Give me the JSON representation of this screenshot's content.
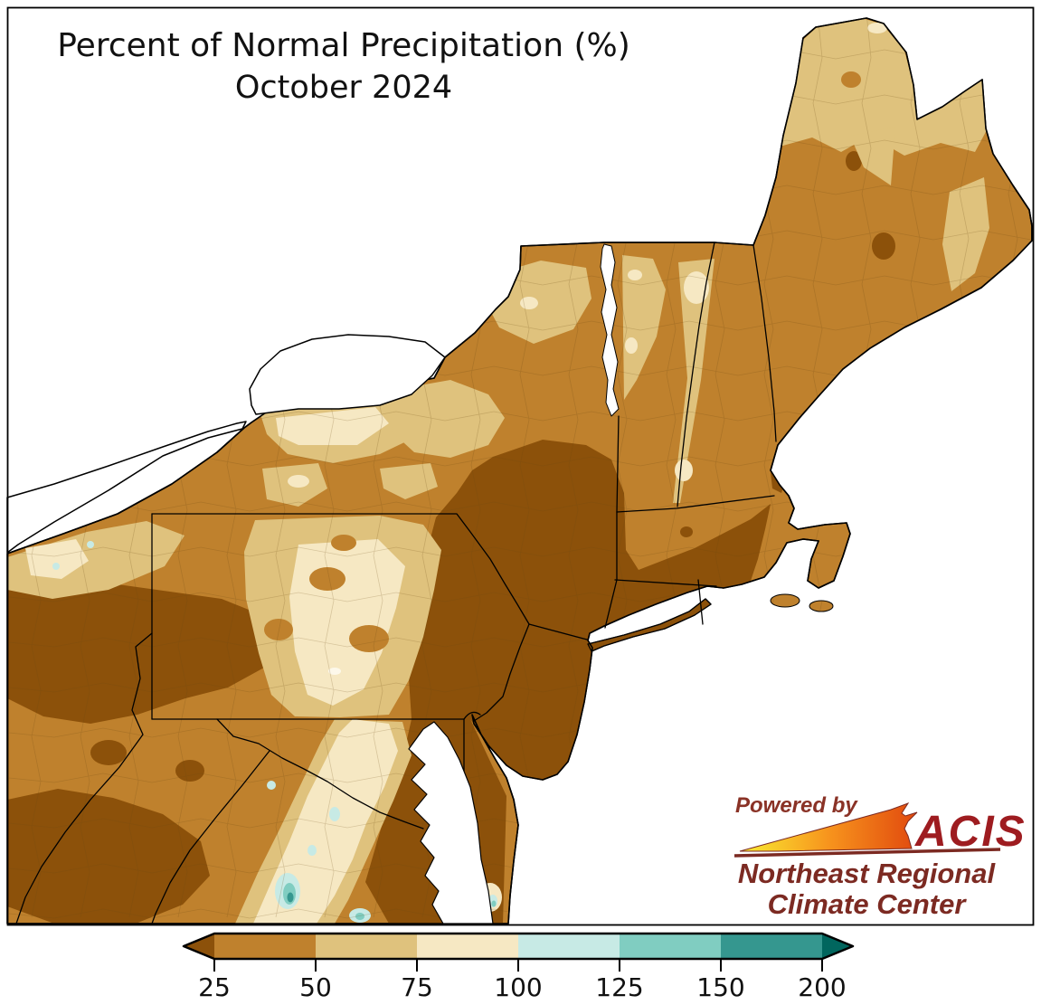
{
  "title": {
    "line1": "Percent of Normal Precipitation (%)",
    "line2": "October 2024"
  },
  "colorbar": {
    "ticks": [
      "25",
      "50",
      "75",
      "100",
      "125",
      "150",
      "200"
    ],
    "segments": [
      {
        "label": "below 25",
        "color": "#8c510a"
      },
      {
        "label": "25-50",
        "color": "#bf812d"
      },
      {
        "label": "50-75",
        "color": "#dfc27d"
      },
      {
        "label": "75-100",
        "color": "#f6e8c3"
      },
      {
        "label": "100-125",
        "color": "#c7eae5"
      },
      {
        "label": "125-150",
        "color": "#80cdc1"
      },
      {
        "label": "150-200",
        "color": "#35978f"
      },
      {
        "label": "above 200",
        "color": "#01665e"
      }
    ]
  },
  "map": {
    "land_base_color": "#bf812d",
    "water_color": "#ffffff",
    "state_border_color": "#000000",
    "county_line_color": "#6b4a14",
    "fill_colors": {
      "below_25": "#8c510a",
      "p50_75": "#dfc27d",
      "p75_100": "#f6e8c3",
      "p100_125": "#c7eae5",
      "p125_150": "#80cdc1",
      "p150_200": "#35978f",
      "fleck_white": "#fdf8ea"
    }
  },
  "logo": {
    "powered_by": "Powered by",
    "acis": "ACIS",
    "org_line1": "Northeast Regional",
    "org_line2": "Climate Center",
    "text_color": "#7c2a22",
    "powered_color": "#8a3226",
    "acis_color": "#9e1c20",
    "swoosh_gradient": [
      "#f9ed32",
      "#f7941d",
      "#e1490e"
    ]
  }
}
